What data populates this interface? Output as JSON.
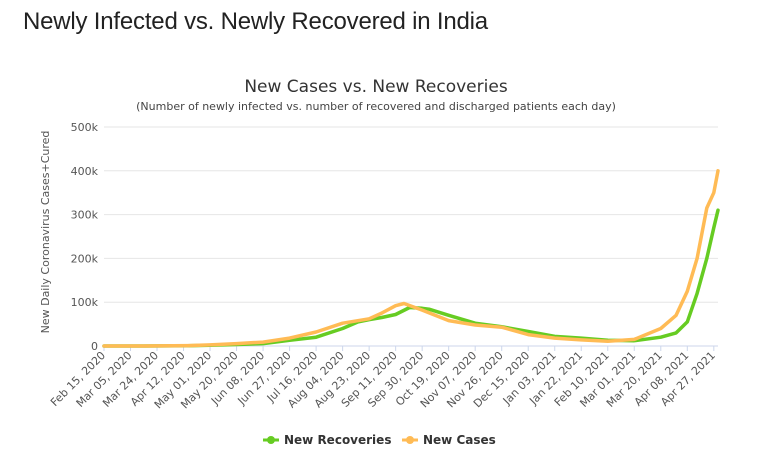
{
  "page": {
    "title": "Newly Infected vs. Newly Recovered in India"
  },
  "chart_data": {
    "type": "line",
    "title": "New Cases vs. New Recoveries",
    "subtitle": "(Number of newly infected vs. number of recovered and discharged patients each day)",
    "ylabel": "New Daily Coronavirus Cases+Cured",
    "xlabel": "",
    "x_tick_labels": [
      "Feb 15, 2020",
      "Mar 05, 2020",
      "Mar 24, 2020",
      "Apr 12, 2020",
      "May 01, 2020",
      "May 20, 2020",
      "Jun 08, 2020",
      "Jun 27, 2020",
      "Jul 16, 2020",
      "Aug 04, 2020",
      "Aug 23, 2020",
      "Sep 11, 2020",
      "Sep 30, 2020",
      "Oct 19, 2020",
      "Nov 07, 2020",
      "Nov 26, 2020",
      "Dec 15, 2020",
      "Jan 03, 2021",
      "Jan 22, 2021",
      "Feb 10, 2021",
      "Mar 01, 2021",
      "Mar 20, 2021",
      "Apr 08, 2021",
      "Apr 27, 2021"
    ],
    "y_tick_labels": [
      "0",
      "100k",
      "200k",
      "300k",
      "400k",
      "500k"
    ],
    "ylim": [
      0,
      500000
    ],
    "x_range": [
      "Feb 15, 2020",
      "Apr 30, 2021"
    ],
    "grid": true,
    "legend_position": "bottom",
    "series": [
      {
        "name": "New Recoveries",
        "color": "#66cc22",
        "points": [
          [
            "Feb 15, 2020",
            0
          ],
          [
            "Mar 15, 2020",
            0
          ],
          [
            "Apr 15, 2020",
            500
          ],
          [
            "May 01, 2020",
            1500
          ],
          [
            "May 20, 2020",
            3500
          ],
          [
            "Jun 08, 2020",
            5500
          ],
          [
            "Jun 27, 2020",
            13000
          ],
          [
            "Jul 16, 2020",
            20000
          ],
          [
            "Aug 04, 2020",
            40000
          ],
          [
            "Aug 15, 2020",
            55000
          ],
          [
            "Aug 23, 2020",
            60000
          ],
          [
            "Sep 01, 2020",
            65000
          ],
          [
            "Sep 11, 2020",
            72000
          ],
          [
            "Sep 21, 2020",
            88000
          ],
          [
            "Sep 30, 2020",
            86000
          ],
          [
            "Oct 05, 2020",
            84000
          ],
          [
            "Oct 19, 2020",
            70000
          ],
          [
            "Nov 07, 2020",
            52000
          ],
          [
            "Nov 26, 2020",
            44000
          ],
          [
            "Dec 15, 2020",
            33000
          ],
          [
            "Jan 03, 2021",
            22000
          ],
          [
            "Jan 22, 2021",
            18000
          ],
          [
            "Feb 10, 2021",
            13000
          ],
          [
            "Mar 01, 2021",
            12000
          ],
          [
            "Mar 20, 2021",
            20000
          ],
          [
            "Mar 31, 2021",
            30000
          ],
          [
            "Apr 08, 2021",
            55000
          ],
          [
            "Apr 15, 2021",
            120000
          ],
          [
            "Apr 22, 2021",
            200000
          ],
          [
            "Apr 27, 2021",
            270000
          ],
          [
            "Apr 30, 2021",
            310000
          ]
        ]
      },
      {
        "name": "New Cases",
        "color": "#ffbb55",
        "points": [
          [
            "Feb 15, 2020",
            0
          ],
          [
            "Mar 15, 2020",
            100
          ],
          [
            "Apr 15, 2020",
            1000
          ],
          [
            "May 01, 2020",
            2500
          ],
          [
            "May 20, 2020",
            5500
          ],
          [
            "Jun 08, 2020",
            9000
          ],
          [
            "Jun 27, 2020",
            18000
          ],
          [
            "Jul 16, 2020",
            32000
          ],
          [
            "Aug 04, 2020",
            52000
          ],
          [
            "Aug 23, 2020",
            62000
          ],
          [
            "Sep 01, 2020",
            75000
          ],
          [
            "Sep 11, 2020",
            92000
          ],
          [
            "Sep 17, 2020",
            97000
          ],
          [
            "Sep 30, 2020",
            82000
          ],
          [
            "Oct 19, 2020",
            58000
          ],
          [
            "Nov 07, 2020",
            48000
          ],
          [
            "Nov 26, 2020",
            43000
          ],
          [
            "Dec 15, 2020",
            26000
          ],
          [
            "Jan 03, 2021",
            18000
          ],
          [
            "Jan 22, 2021",
            14000
          ],
          [
            "Feb 10, 2021",
            11000
          ],
          [
            "Mar 01, 2021",
            15000
          ],
          [
            "Mar 20, 2021",
            40000
          ],
          [
            "Mar 31, 2021",
            70000
          ],
          [
            "Apr 08, 2021",
            125000
          ],
          [
            "Apr 15, 2021",
            200000
          ],
          [
            "Apr 22, 2021",
            315000
          ],
          [
            "Apr 27, 2021",
            350000
          ],
          [
            "Apr 30, 2021",
            400000
          ]
        ]
      }
    ]
  }
}
